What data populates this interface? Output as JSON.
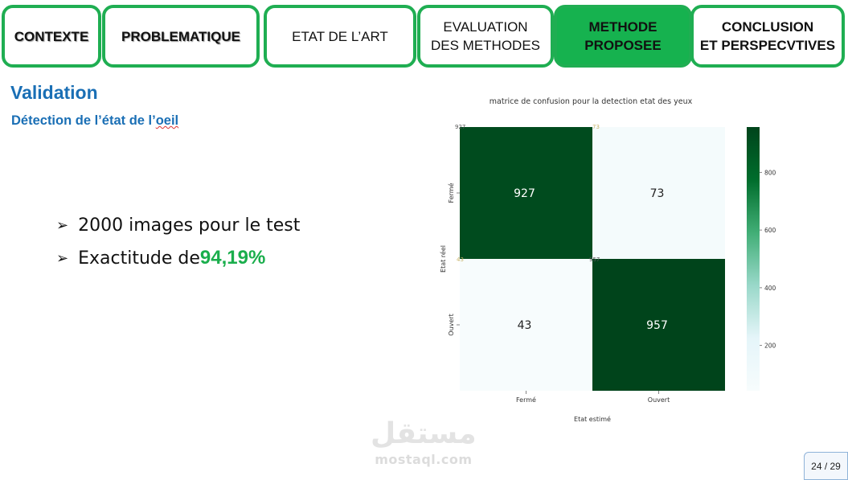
{
  "nav": {
    "tabs": [
      {
        "label": "CONTEXTE",
        "active": false
      },
      {
        "label": "PROBLEMATIQUE",
        "active": false
      },
      {
        "label": "ETAT DE L’ART",
        "active": false
      },
      {
        "label": "EVALUATION\nDES METHODES",
        "active": false
      },
      {
        "label": "METHODE\nPROPOSEE",
        "active": true
      },
      {
        "label": "CONCLUSION\nET PERSPECVTIVES",
        "active": false
      }
    ]
  },
  "section": {
    "title": "Validation",
    "subtitle_prefix": "Détection de l’état de l’",
    "subtitle_word": "oeil"
  },
  "bullets": {
    "arrow": "➢",
    "item1": "2000 images pour le test",
    "item2_prefix": "Exactitude de ",
    "item2_value": "94,19%"
  },
  "chart_data": {
    "type": "heatmap",
    "title": "matrice de confusion pour la detection etat des yeux",
    "xlabel": "Etat estimé",
    "ylabel": "Etat réel",
    "x_categories": [
      "Fermé",
      "Ouvert"
    ],
    "y_categories": [
      "Fermé",
      "Ouvert"
    ],
    "values": [
      [
        927,
        73
      ],
      [
        43,
        957
      ]
    ],
    "colorbar": {
      "ticks": [
        200,
        400,
        600,
        800
      ],
      "range": [
        43,
        957
      ],
      "colors": [
        "#f7fcfd",
        "#e5f5f9",
        "#99d8c9",
        "#41ae76",
        "#006d2c",
        "#00441b"
      ]
    },
    "ghost_labels": [
      "927",
      "73",
      "43",
      "957"
    ]
  },
  "watermark": {
    "arabic": "مستقل",
    "latin": "mostaql.com"
  },
  "footer": {
    "page": "24 / 29"
  }
}
